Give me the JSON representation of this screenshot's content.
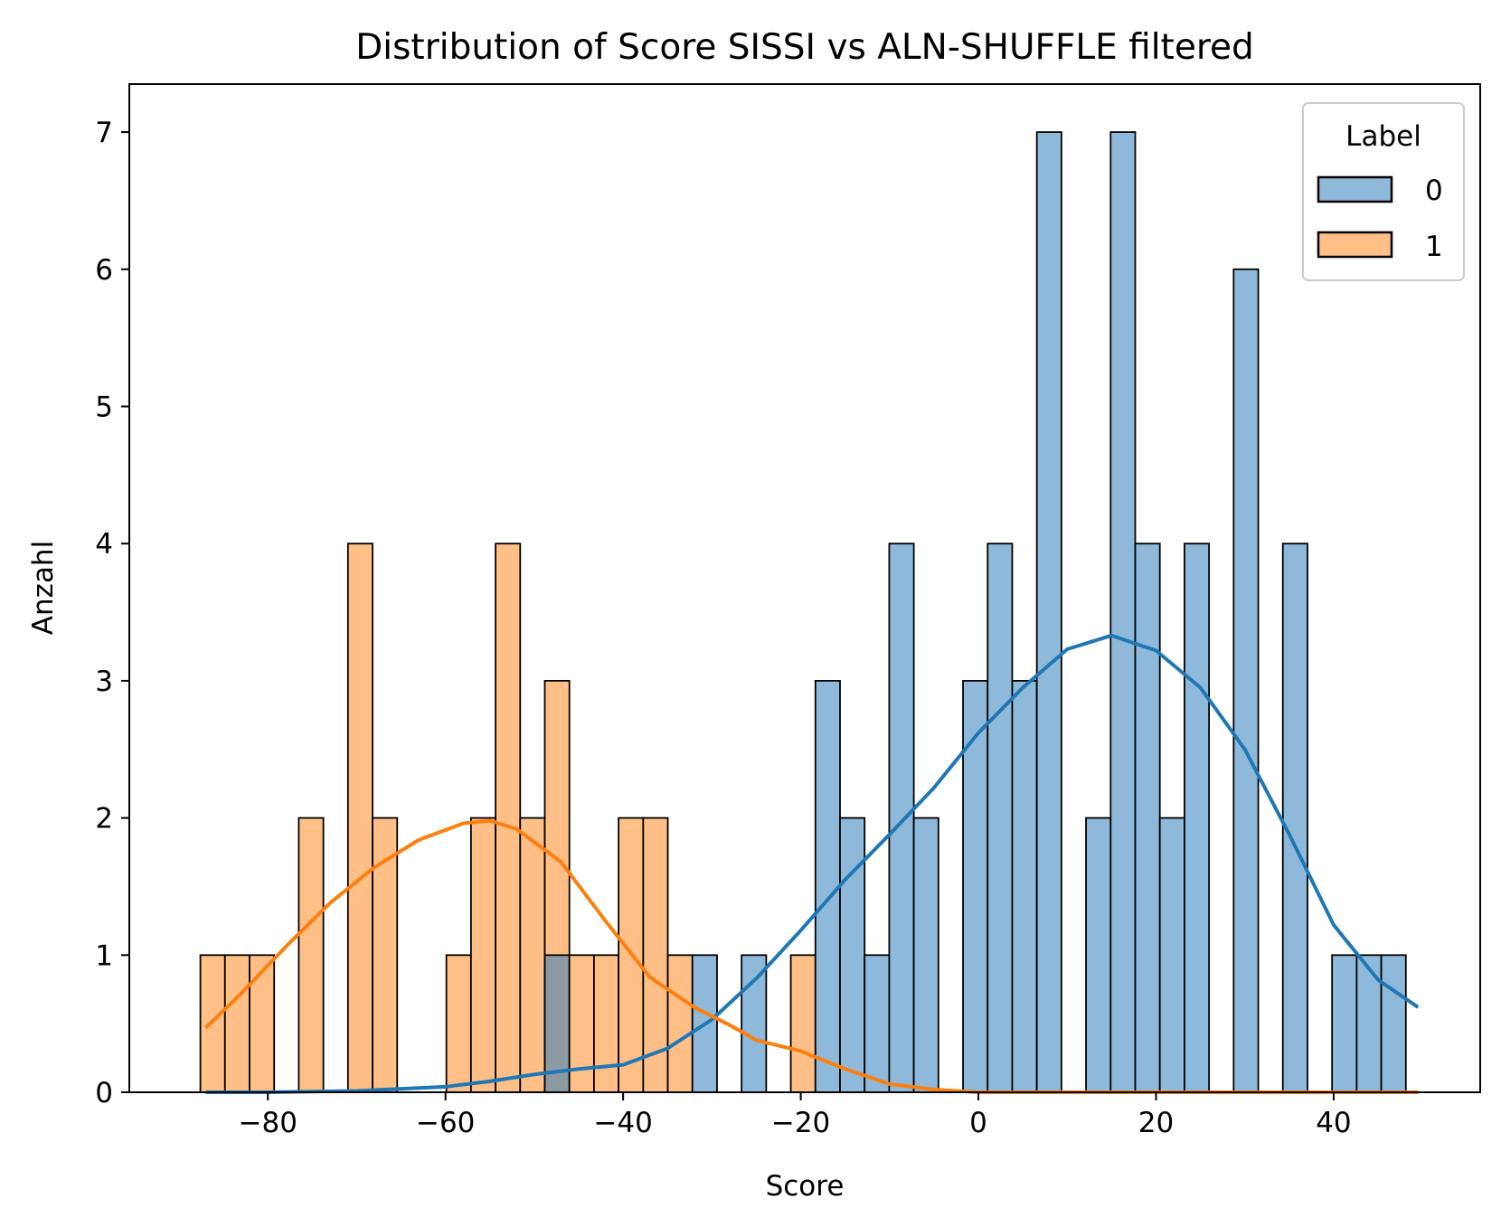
{
  "chart_data": {
    "type": "bar",
    "title": "Distribution of Score SISSI vs ALN-SHUFFLE filtered",
    "xlabel": "Score",
    "ylabel": "Anzahl",
    "xlim": [
      -95.6,
      56.5
    ],
    "ylim": [
      0,
      7.35
    ],
    "xticks": [
      -80,
      -60,
      -40,
      -20,
      0,
      20,
      40
    ],
    "xtick_labels": [
      "−80",
      "−60",
      "−40",
      "−20",
      "0",
      "20",
      "40"
    ],
    "yticks": [
      0,
      1,
      2,
      3,
      4,
      5,
      6,
      7
    ],
    "ytick_labels": [
      "0",
      "1",
      "2",
      "3",
      "4",
      "5",
      "6",
      "7"
    ],
    "grid": false,
    "legend": {
      "title": "Label",
      "placement": "top-right",
      "entries": [
        "0",
        "1"
      ]
    },
    "bin_start": -87.6,
    "bin_width": 2.77,
    "series": [
      {
        "name": "0",
        "color": "#1f77b4",
        "fill": "#8fb9da",
        "counts": [
          0,
          0,
          0,
          0,
          0,
          0,
          0,
          0,
          0,
          0,
          0,
          0,
          0,
          0,
          1,
          0,
          0,
          0,
          0,
          0,
          1,
          0,
          1,
          0,
          0,
          3,
          2,
          1,
          4,
          2,
          0,
          3,
          4,
          3,
          7,
          0,
          2,
          7,
          4,
          2,
          4,
          0,
          6,
          0,
          4,
          0,
          1,
          1,
          1
        ],
        "kde": [
          [
            -87.0,
            0.0
          ],
          [
            -80.0,
            0.0
          ],
          [
            -70.0,
            0.01
          ],
          [
            -60.0,
            0.04
          ],
          [
            -55.0,
            0.08
          ],
          [
            -50.0,
            0.13
          ],
          [
            -45.0,
            0.17
          ],
          [
            -40.0,
            0.2
          ],
          [
            -35.0,
            0.32
          ],
          [
            -30.0,
            0.53
          ],
          [
            -25.0,
            0.83
          ],
          [
            -20.0,
            1.18
          ],
          [
            -15.0,
            1.55
          ],
          [
            -10.0,
            1.88
          ],
          [
            -5.0,
            2.22
          ],
          [
            0.0,
            2.62
          ],
          [
            5.0,
            2.95
          ],
          [
            10.0,
            3.23
          ],
          [
            15.0,
            3.33
          ],
          [
            20.0,
            3.22
          ],
          [
            25.0,
            2.95
          ],
          [
            30.0,
            2.5
          ],
          [
            35.0,
            1.88
          ],
          [
            40.0,
            1.22
          ],
          [
            45.0,
            0.82
          ],
          [
            49.5,
            0.62
          ]
        ]
      },
      {
        "name": "1",
        "color": "#ff7f0e",
        "fill": "#ffbf86",
        "counts": [
          1,
          1,
          1,
          0,
          2,
          0,
          4,
          2,
          0,
          0,
          1,
          2,
          4,
          2,
          3,
          1,
          1,
          2,
          2,
          1,
          0,
          0,
          0,
          0,
          1,
          0,
          0,
          0,
          0,
          0,
          0,
          0,
          0,
          0,
          0,
          0,
          0,
          0,
          0,
          0,
          0,
          0,
          0,
          0,
          0,
          0,
          0,
          0,
          0
        ],
        "kde": [
          [
            -87.0,
            0.47
          ],
          [
            -83.0,
            0.72
          ],
          [
            -78.0,
            1.06
          ],
          [
            -73.0,
            1.38
          ],
          [
            -68.0,
            1.64
          ],
          [
            -63.0,
            1.84
          ],
          [
            -58.0,
            1.96
          ],
          [
            -55.0,
            1.98
          ],
          [
            -52.0,
            1.92
          ],
          [
            -47.0,
            1.68
          ],
          [
            -42.0,
            1.25
          ],
          [
            -37.0,
            0.84
          ],
          [
            -32.0,
            0.62
          ],
          [
            -28.0,
            0.49
          ],
          [
            -25.0,
            0.38
          ],
          [
            -20.0,
            0.3
          ],
          [
            -15.0,
            0.17
          ],
          [
            -10.0,
            0.06
          ],
          [
            -5.0,
            0.02
          ],
          [
            0.0,
            0.0
          ],
          [
            10.0,
            0.0
          ],
          [
            20.0,
            0.0
          ],
          [
            30.0,
            0.0
          ],
          [
            40.0,
            0.0
          ],
          [
            49.5,
            0.0
          ]
        ]
      }
    ],
    "overlap_fill": "#8b9aa4"
  }
}
